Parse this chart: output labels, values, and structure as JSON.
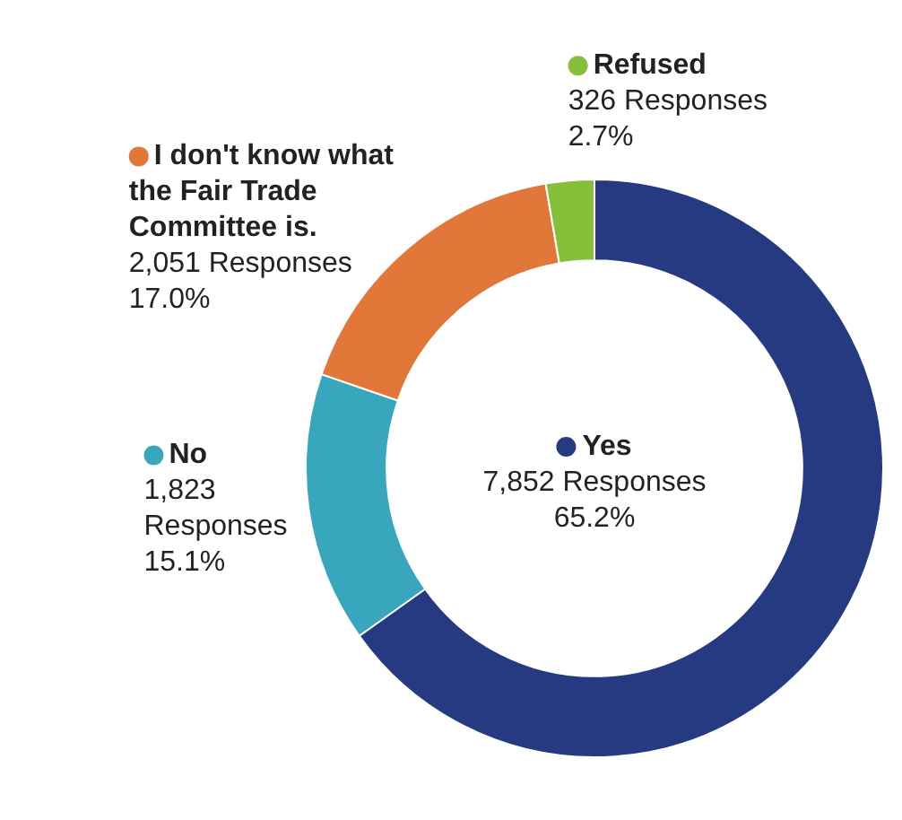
{
  "chart_data": {
    "type": "donut",
    "categories": [
      "Yes",
      "No",
      "I don't know what the Fair Trade Committee is.",
      "Refused"
    ],
    "values": [
      7852,
      1823,
      2051,
      326
    ],
    "colors": [
      "#253a80",
      "#38a6bd",
      "#e2773a",
      "#86bf3a"
    ],
    "legend": "left",
    "value_labels": [
      "7,852 Responses\n65.2%",
      "1,823\nResponses\n15.1%",
      "2,051 Responses\n17.0%",
      "326 Responses\n2.7%"
    ]
  }
}
